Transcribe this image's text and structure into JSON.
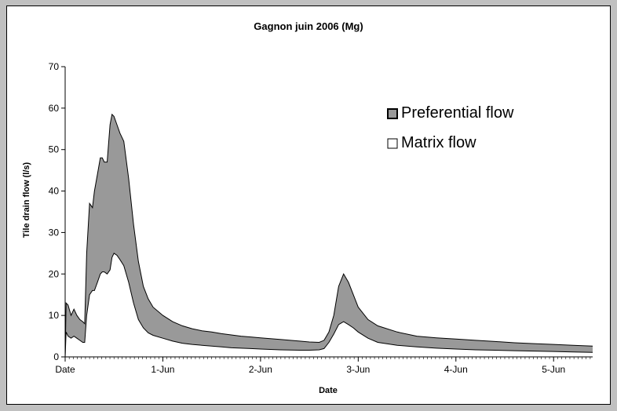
{
  "chart_data": {
    "type": "area",
    "title": "Gagnon juin 2006 (Mg)",
    "xlabel": "Date",
    "ylabel": "Tile drain flow (l/s)",
    "ylim": [
      0,
      70
    ],
    "yticks": [
      0,
      10,
      20,
      30,
      40,
      50,
      60,
      70
    ],
    "xlim": [
      0,
      5.4
    ],
    "xticks": [
      {
        "value": 0,
        "label": "Date"
      },
      {
        "value": 1,
        "label": "1-Jun"
      },
      {
        "value": 2,
        "label": "2-Jun"
      },
      {
        "value": 3,
        "label": "3-Jun"
      },
      {
        "value": 4,
        "label": "4-Jun"
      },
      {
        "value": 5,
        "label": "5-Jun"
      }
    ],
    "x_unit": "days",
    "legend_position": "top-right",
    "grid": false,
    "colors": {
      "preferential": "#999999",
      "matrix": "#ffffff",
      "line": "#000000"
    },
    "series": [
      {
        "name": "Preferential flow",
        "x": [
          0.0,
          0.01,
          0.03,
          0.06,
          0.09,
          0.12,
          0.15,
          0.18,
          0.2,
          0.22,
          0.25,
          0.28,
          0.3,
          0.33,
          0.36,
          0.38,
          0.4,
          0.43,
          0.46,
          0.48,
          0.5,
          0.53,
          0.56,
          0.6,
          0.65,
          0.7,
          0.75,
          0.8,
          0.85,
          0.9,
          1.0,
          1.1,
          1.2,
          1.3,
          1.4,
          1.5,
          1.6,
          1.7,
          1.8,
          1.9,
          2.0,
          2.2,
          2.4,
          2.5,
          2.6,
          2.65,
          2.7,
          2.75,
          2.8,
          2.85,
          2.9,
          2.95,
          3.0,
          3.1,
          3.2,
          3.4,
          3.6,
          3.8,
          4.0,
          4.2,
          4.4,
          4.6,
          4.8,
          5.0,
          5.2,
          5.4
        ],
        "values": [
          0,
          13,
          12.5,
          10,
          11.5,
          10,
          9,
          8.5,
          8,
          25,
          37,
          36,
          40,
          44,
          48,
          48,
          47,
          47,
          56,
          58.5,
          58,
          56,
          54,
          52,
          43,
          32,
          23,
          17,
          14,
          12,
          10,
          8.5,
          7.5,
          6.8,
          6.3,
          6,
          5.6,
          5.3,
          5,
          4.8,
          4.6,
          4.2,
          3.8,
          3.6,
          3.5,
          4,
          6,
          10,
          17,
          20,
          18,
          15,
          12,
          9,
          7.5,
          6,
          5,
          4.6,
          4.3,
          4,
          3.7,
          3.4,
          3.2,
          3,
          2.8,
          2.6
        ]
      },
      {
        "name": "Matrix flow",
        "x": [
          0.0,
          0.01,
          0.03,
          0.06,
          0.09,
          0.12,
          0.15,
          0.18,
          0.2,
          0.22,
          0.25,
          0.28,
          0.3,
          0.33,
          0.36,
          0.38,
          0.4,
          0.43,
          0.46,
          0.48,
          0.5,
          0.53,
          0.56,
          0.6,
          0.65,
          0.7,
          0.75,
          0.8,
          0.85,
          0.9,
          1.0,
          1.1,
          1.2,
          1.3,
          1.4,
          1.5,
          1.6,
          1.7,
          1.8,
          1.9,
          2.0,
          2.2,
          2.4,
          2.5,
          2.6,
          2.65,
          2.7,
          2.75,
          2.8,
          2.85,
          2.9,
          2.95,
          3.0,
          3.1,
          3.2,
          3.4,
          3.6,
          3.8,
          4.0,
          4.2,
          4.4,
          4.6,
          4.8,
          5.0,
          5.2,
          5.4
        ],
        "values": [
          0,
          6,
          5,
          4.5,
          5,
          4.5,
          4,
          3.5,
          3.5,
          10,
          15,
          16,
          16,
          18,
          20,
          20.5,
          20.5,
          20,
          21,
          24,
          25,
          24.5,
          23.5,
          22,
          18,
          13,
          9,
          7,
          5.8,
          5.2,
          4.5,
          3.8,
          3.3,
          3,
          2.8,
          2.6,
          2.4,
          2.2,
          2.1,
          2,
          1.9,
          1.7,
          1.6,
          1.6,
          1.7,
          2,
          3.5,
          5.5,
          7.8,
          8.5,
          7.8,
          7,
          6,
          4.5,
          3.5,
          2.8,
          2.4,
          2.1,
          1.9,
          1.7,
          1.6,
          1.5,
          1.4,
          1.3,
          1.2,
          1.1
        ]
      }
    ]
  }
}
